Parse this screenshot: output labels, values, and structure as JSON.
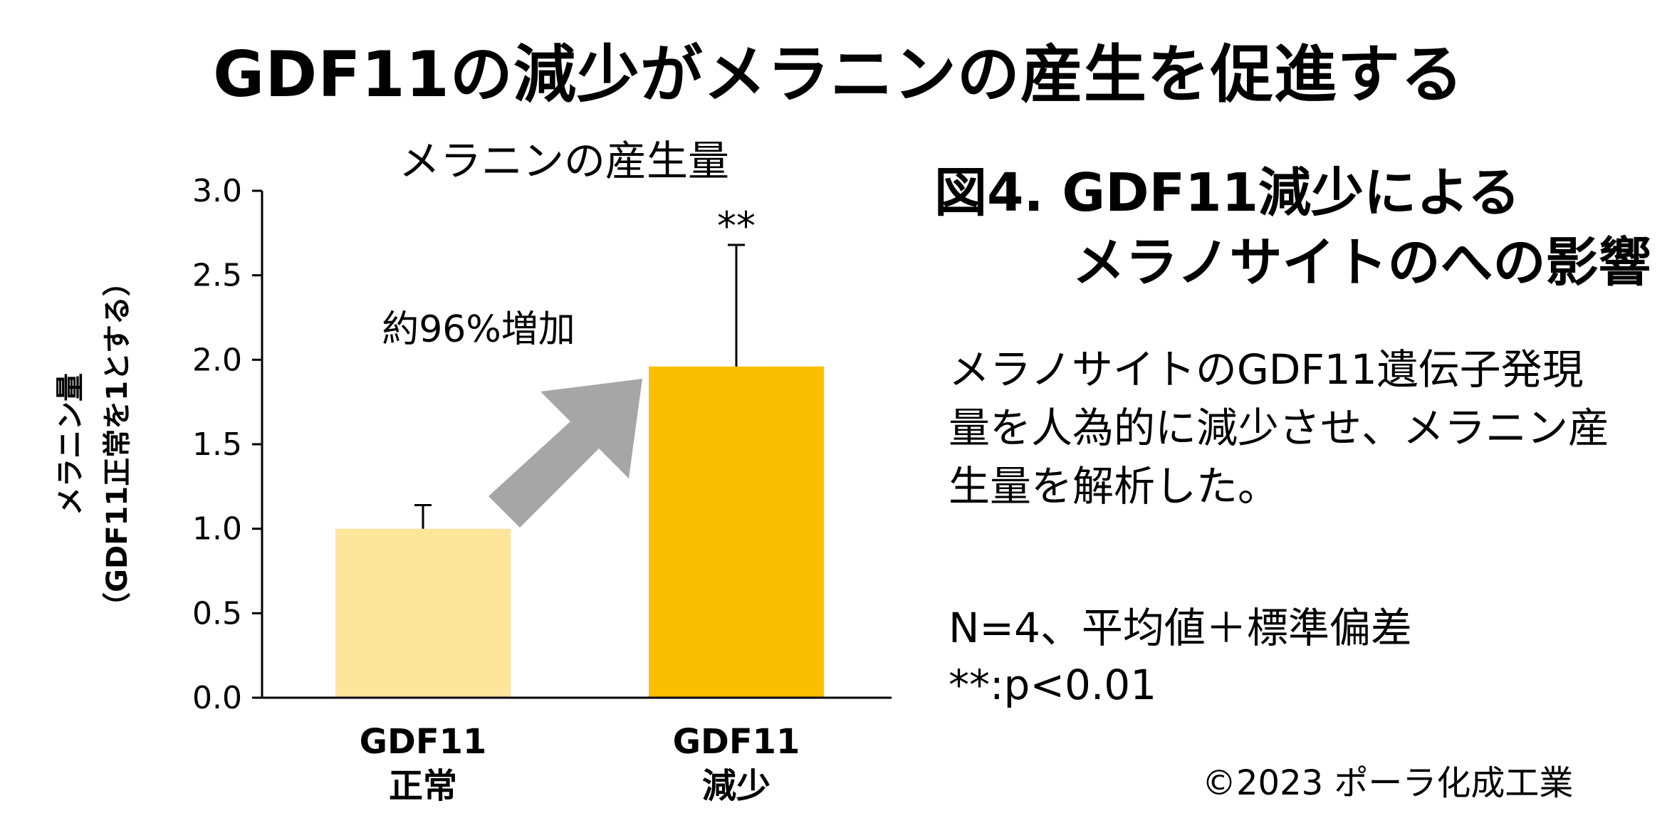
{
  "slide": {
    "title": "GDF11の減少がメラニンの産生を促進する",
    "figure_title_line1": "図4. GDF11減少による",
    "figure_title_line2": "メラノサイトのへの影響",
    "description": "メラノサイトのGDF11遺伝子発現量を人為的に減少させ、メラニン産生量を解析した。",
    "stats_line1": "N=4、平均値＋標準偏差",
    "stats_line2": "**:p<0.01",
    "copyright": "©2023 ポーラ化成工業"
  },
  "chart_data": {
    "type": "bar",
    "title": "メラニンの産生量",
    "ylabel_line1": "メラニン量",
    "ylabel_line2": "（GDF11正常を1とする）",
    "categories": [
      [
        "GDF11",
        "正常"
      ],
      [
        "GDF11",
        "減少"
      ]
    ],
    "values": [
      1.0,
      1.96
    ],
    "error_upper": [
      1.14,
      2.68
    ],
    "ylim": [
      0,
      3.0
    ],
    "yticks": [
      "0.0",
      "0.5",
      "1.0",
      "1.5",
      "2.0",
      "2.5",
      "3.0"
    ],
    "significance": "**",
    "annotation": "約96%増加",
    "colors": [
      "#fde59b",
      "#fbbf00"
    ],
    "arrow_color": "#a6a6a6",
    "grid": false,
    "legend": "none"
  }
}
